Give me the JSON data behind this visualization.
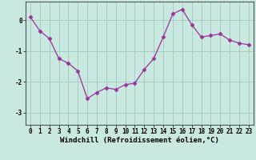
{
  "x": [
    0,
    1,
    2,
    3,
    4,
    5,
    6,
    7,
    8,
    9,
    10,
    11,
    12,
    13,
    14,
    15,
    16,
    17,
    18,
    19,
    20,
    21,
    22,
    23
  ],
  "y": [
    0.1,
    -0.35,
    -0.6,
    -1.25,
    -1.4,
    -1.65,
    -2.55,
    -2.35,
    -2.2,
    -2.25,
    -2.1,
    -2.05,
    -1.6,
    -1.25,
    -0.55,
    0.2,
    0.35,
    -0.15,
    -0.55,
    -0.5,
    -0.45,
    -0.65,
    -0.75,
    -0.8
  ],
  "line_color": "#993399",
  "marker": "D",
  "marker_size": 2.5,
  "bg_color": "#c8e8e0",
  "grid_color": "#a0c8c0",
  "xlabel": "Windchill (Refroidissement éolien,°C)",
  "xlabel_fontsize": 6.5,
  "tick_fontsize": 5.5,
  "ylim": [
    -3.4,
    0.6
  ],
  "xlim": [
    -0.5,
    23.5
  ],
  "yticks": [
    0,
    -1,
    -2,
    -3
  ],
  "xticks": [
    0,
    1,
    2,
    3,
    4,
    5,
    6,
    7,
    8,
    9,
    10,
    11,
    12,
    13,
    14,
    15,
    16,
    17,
    18,
    19,
    20,
    21,
    22,
    23
  ]
}
